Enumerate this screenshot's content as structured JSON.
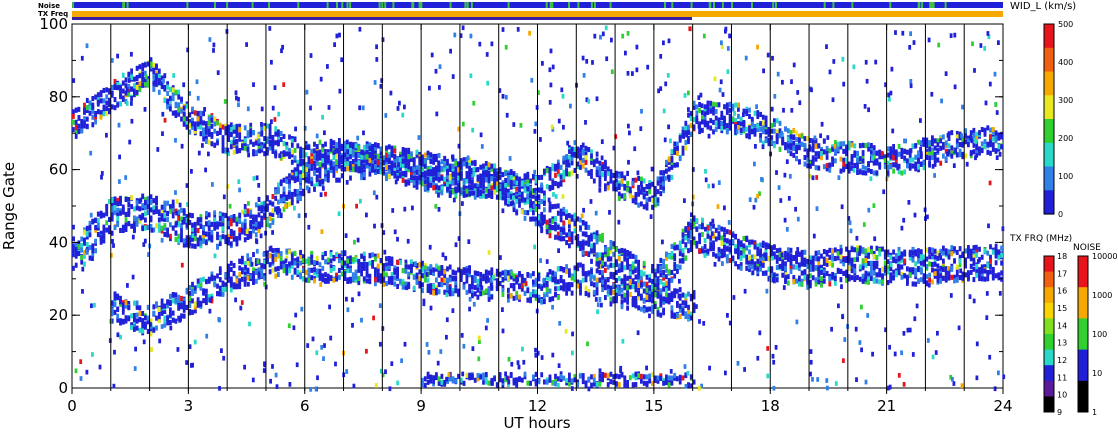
{
  "chart_data": {
    "type": "heatmap",
    "xlabel": "UT hours",
    "ylabel": "Range Gate",
    "x_ticks": [
      "0",
      "3",
      "6",
      "9",
      "12",
      "15",
      "18",
      "21",
      "24"
    ],
    "y_ticks": [
      "0",
      "20",
      "40",
      "60",
      "80",
      "100"
    ],
    "xlim": [
      0,
      24
    ],
    "ylim": [
      0,
      100
    ],
    "vertical_markers_hours": [
      1,
      2,
      3,
      4,
      5,
      6,
      7,
      8,
      9,
      10,
      11,
      12,
      13,
      14,
      15,
      16,
      17,
      18,
      19,
      20,
      21,
      22,
      23
    ],
    "bands": [
      {
        "name": "upper",
        "from_hour": 0,
        "to_hour": 24,
        "center_gates": [
          72,
          80,
          86,
          74,
          68,
          68,
          63,
          64,
          62,
          58,
          56,
          56,
          54,
          64,
          56,
          52,
          74,
          74,
          70,
          64,
          63,
          62,
          64,
          67,
          68
        ],
        "width_gates": 5
      },
      {
        "name": "middle",
        "from_hour": 0,
        "to_hour": 24,
        "center_gates": [
          35,
          47,
          48,
          43,
          43,
          48,
          58,
          62,
          62,
          60,
          58,
          56,
          48,
          42,
          34,
          28,
          42,
          38,
          34,
          32,
          34,
          33,
          33,
          34,
          34
        ],
        "width_gates": 6
      },
      {
        "name": "lower",
        "from_hour": 1,
        "to_hour": 16,
        "center_gates": [
          22,
          18,
          24,
          30,
          34,
          33,
          33,
          32,
          30,
          29,
          28,
          27,
          30,
          26,
          24,
          22
        ],
        "width_gates": 5
      },
      {
        "name": "near",
        "from_hour": 9,
        "to_hour": 16,
        "center_gates": [
          2,
          2,
          2,
          2,
          2,
          2,
          2,
          2
        ],
        "width_gates": 2
      }
    ],
    "status_bars": {
      "noise_label": "Noise",
      "txfreq_label": "TX Freq",
      "noise_color": "#2020d8",
      "noise_flecks_color": "#40c040",
      "txfreq_color": "#f4a800",
      "txfreq_marker_color": "#3a1fa0"
    },
    "colorbars": [
      {
        "title": "WID_L (km/s)",
        "ticks": [
          "500",
          "400",
          "300",
          "200",
          "100",
          "0"
        ],
        "colors": [
          "#e8141c",
          "#f06010",
          "#f4a800",
          "#e8e820",
          "#30d030",
          "#28d8c8",
          "#3080e8",
          "#2020d8"
        ]
      },
      {
        "title": "TX FRQ (MHz)",
        "ticks": [
          "18",
          "17",
          "16",
          "15",
          "14",
          "13",
          "12",
          "11",
          "10",
          "9"
        ],
        "colors": [
          "#e8141c",
          "#f06010",
          "#f4a800",
          "#f8d400",
          "#7fe020",
          "#30d030",
          "#28d8c8",
          "#2020d8",
          "#5a1a9a",
          "#000000"
        ]
      },
      {
        "title": "NOISE",
        "ticks": [
          "10000",
          "1000",
          "100",
          "10",
          "1"
        ],
        "colors": [
          "#e8141c",
          "#f4a800",
          "#30d030",
          "#2020d8",
          "#000000"
        ]
      }
    ]
  }
}
